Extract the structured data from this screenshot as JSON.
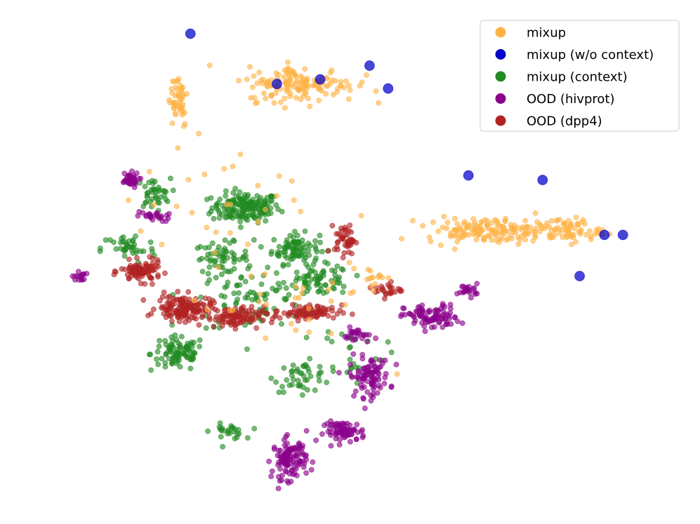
{
  "chart_data": {
    "type": "scatter",
    "title": "",
    "xlabel": "",
    "ylabel": "",
    "axes_visible": false,
    "grid": false,
    "legend": {
      "placement": "top-right"
    },
    "series": [
      {
        "name": "mixup",
        "color": "#FFB347",
        "clusters": [
          {
            "x": 22,
            "y": 86,
            "spread": [
              1.5,
              6
            ],
            "n": 50
          },
          {
            "x": 42,
            "y": 89,
            "spread": [
              8,
              3.5
            ],
            "n": 150
          },
          {
            "x": 72,
            "y": 57,
            "spread": [
              9,
              2.5
            ],
            "n": 150
          },
          {
            "x": 85,
            "y": 57,
            "spread": [
              5,
              2.5
            ],
            "n": 70
          },
          {
            "x": 53,
            "y": 47,
            "spread": [
              3,
              1.5
            ],
            "n": 15
          },
          {
            "x": 30,
            "y": 63,
            "spread": [
              14,
              12
            ],
            "n": 30
          },
          {
            "x": 40,
            "y": 41,
            "spread": [
              14,
              11
            ],
            "n": 30
          }
        ]
      },
      {
        "name": "mixup (w/o context)",
        "color": "#0000C8",
        "points": [
          [
            24,
            100
          ],
          [
            38,
            89
          ],
          [
            45,
            90
          ],
          [
            53,
            93
          ],
          [
            56,
            88
          ],
          [
            69,
            69
          ],
          [
            81,
            68
          ],
          [
            91,
            56
          ],
          [
            94,
            56
          ],
          [
            87,
            47
          ]
        ]
      },
      {
        "name": "mixup (context)",
        "color": "#228B22",
        "clusters": [
          {
            "x": 33,
            "y": 62,
            "spread": [
              5,
              3
            ],
            "n": 170
          },
          {
            "x": 41,
            "y": 53,
            "spread": [
              3.5,
              3
            ],
            "n": 90
          },
          {
            "x": 29,
            "y": 51,
            "spread": [
              4,
              3
            ],
            "n": 60
          },
          {
            "x": 22,
            "y": 30,
            "spread": [
              4,
              3.5
            ],
            "n": 90
          },
          {
            "x": 45,
            "y": 46,
            "spread": [
              4.5,
              3
            ],
            "n": 70
          },
          {
            "x": 42,
            "y": 25,
            "spread": [
              4,
              3
            ],
            "n": 40
          },
          {
            "x": 30,
            "y": 13,
            "spread": [
              2.5,
              1.5
            ],
            "n": 25
          },
          {
            "x": 18,
            "y": 65,
            "spread": [
              2.5,
              3
            ],
            "n": 40
          },
          {
            "x": 14,
            "y": 53,
            "spread": [
              4,
              3
            ],
            "n": 40
          },
          {
            "x": 34,
            "y": 42,
            "spread": [
              8,
              7
            ],
            "n": 80
          },
          {
            "x": 50,
            "y": 30,
            "spread": [
              5,
              6
            ],
            "n": 30
          }
        ]
      },
      {
        "name": "OOD (hivprot)",
        "color": "#8B008B",
        "clusters": [
          {
            "x": 14,
            "y": 68,
            "spread": [
              1.5,
              1.5
            ],
            "n": 35
          },
          {
            "x": 18,
            "y": 60,
            "spread": [
              2.5,
              1
            ],
            "n": 25
          },
          {
            "x": 6,
            "y": 47,
            "spread": [
              1,
              1
            ],
            "n": 15
          },
          {
            "x": 63,
            "y": 38,
            "spread": [
              4,
              2.5
            ],
            "n": 90
          },
          {
            "x": 69,
            "y": 44,
            "spread": [
              1.5,
              1.2
            ],
            "n": 25
          },
          {
            "x": 53,
            "y": 25,
            "spread": [
              3,
              4
            ],
            "n": 90
          },
          {
            "x": 49,
            "y": 13,
            "spread": [
              3,
              2
            ],
            "n": 70
          },
          {
            "x": 40,
            "y": 7,
            "spread": [
              2.5,
              4
            ],
            "n": 110
          },
          {
            "x": 51,
            "y": 34,
            "spread": [
              2,
              1.5
            ],
            "n": 25
          }
        ]
      },
      {
        "name": "OOD (dpp4)",
        "color": "#B22222",
        "clusters": [
          {
            "x": 16,
            "y": 48,
            "spread": [
              3,
              2
            ],
            "n": 90
          },
          {
            "x": 23,
            "y": 40,
            "spread": [
              4,
              2.5
            ],
            "n": 140
          },
          {
            "x": 31,
            "y": 38,
            "spread": [
              4,
              2
            ],
            "n": 90
          },
          {
            "x": 43,
            "y": 39,
            "spread": [
              5,
              1.5
            ],
            "n": 80
          },
          {
            "x": 49,
            "y": 55,
            "spread": [
              1.5,
              3
            ],
            "n": 45
          },
          {
            "x": 56,
            "y": 44,
            "spread": [
              2,
              1.5
            ],
            "n": 25
          }
        ]
      }
    ],
    "xlim": [
      0,
      100
    ],
    "ylim": [
      0,
      100
    ]
  }
}
